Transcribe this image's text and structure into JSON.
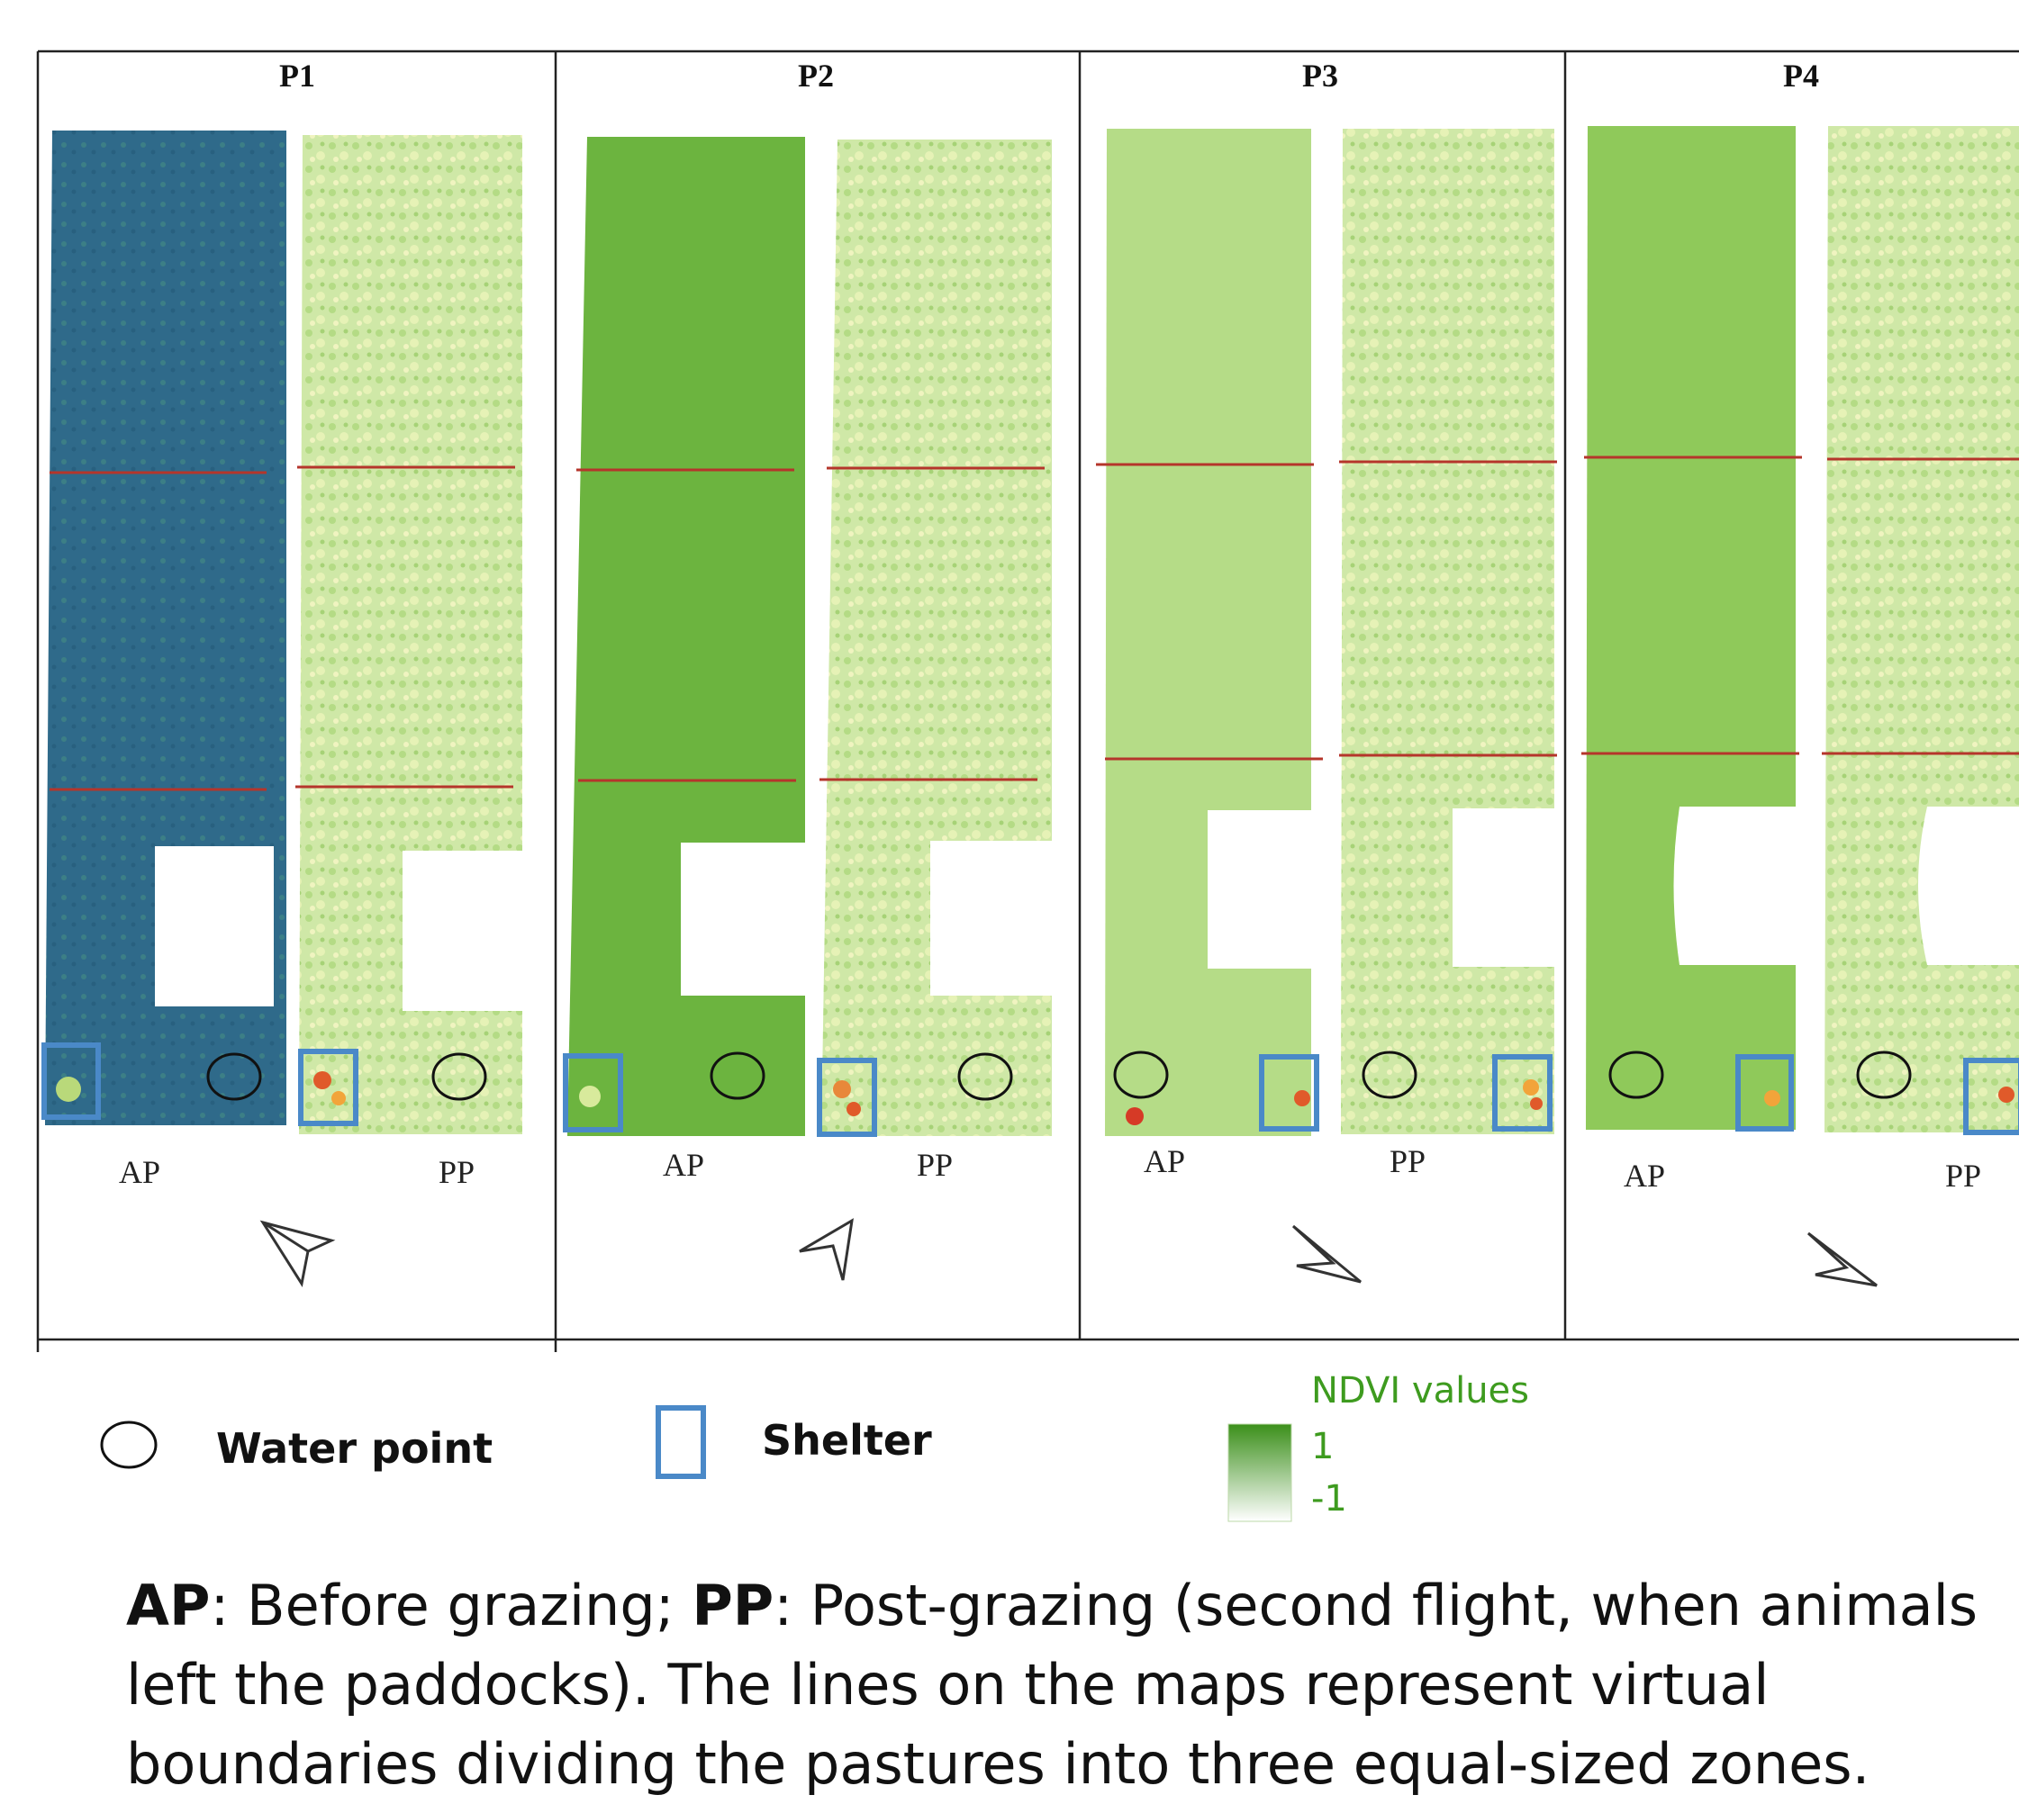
{
  "colors": {
    "p1_ap_base": "#2f6a8a",
    "dense_green": "#6cb43f",
    "light_green": "#cfe8a7",
    "boundary_line": "#b5352b",
    "shelter_outline": "#4a89c8",
    "legend_text": "#3e9b1f",
    "gradient_top": "#3b8f1a",
    "gradient_bottom": "#ffffff"
  },
  "panels": [
    {
      "title": "P1",
      "maps": [
        {
          "label": "AP",
          "icons": [
            "shelter-icon",
            "water-point-icon"
          ]
        },
        {
          "label": "PP",
          "icons": [
            "shelter-icon",
            "water-point-icon"
          ]
        }
      ],
      "north_arrow": "north-arrow-icon"
    },
    {
      "title": "P2",
      "maps": [
        {
          "label": "AP",
          "icons": [
            "shelter-icon",
            "water-point-icon"
          ]
        },
        {
          "label": "PP",
          "icons": [
            "shelter-icon",
            "water-point-icon"
          ]
        }
      ],
      "north_arrow": "north-arrow-icon"
    },
    {
      "title": "P3",
      "maps": [
        {
          "label": "AP",
          "icons": [
            "water-point-icon",
            "shelter-icon"
          ]
        },
        {
          "label": "PP",
          "icons": [
            "water-point-icon",
            "shelter-icon"
          ]
        }
      ],
      "north_arrow": "north-arrow-icon"
    },
    {
      "title": "P4",
      "maps": [
        {
          "label": "AP",
          "icons": [
            "water-point-icon",
            "shelter-icon"
          ]
        },
        {
          "label": "PP",
          "icons": [
            "water-point-icon",
            "shelter-icon"
          ]
        }
      ],
      "north_arrow": "north-arrow-icon"
    }
  ],
  "legend": {
    "water_point": "Water point",
    "shelter": "Shelter",
    "ndvi_title": "NDVI values",
    "ndvi_max": "1",
    "ndvi_min": "-1"
  },
  "caption": {
    "ap_term": "AP",
    "ap_text": ": Before grazing; ",
    "pp_term": "PP",
    "pp_text": ": Post-grazing (second flight, when animals left the paddocks). The lines on the maps represent virtual boundaries dividing the pastures into three equal-sized zones."
  }
}
